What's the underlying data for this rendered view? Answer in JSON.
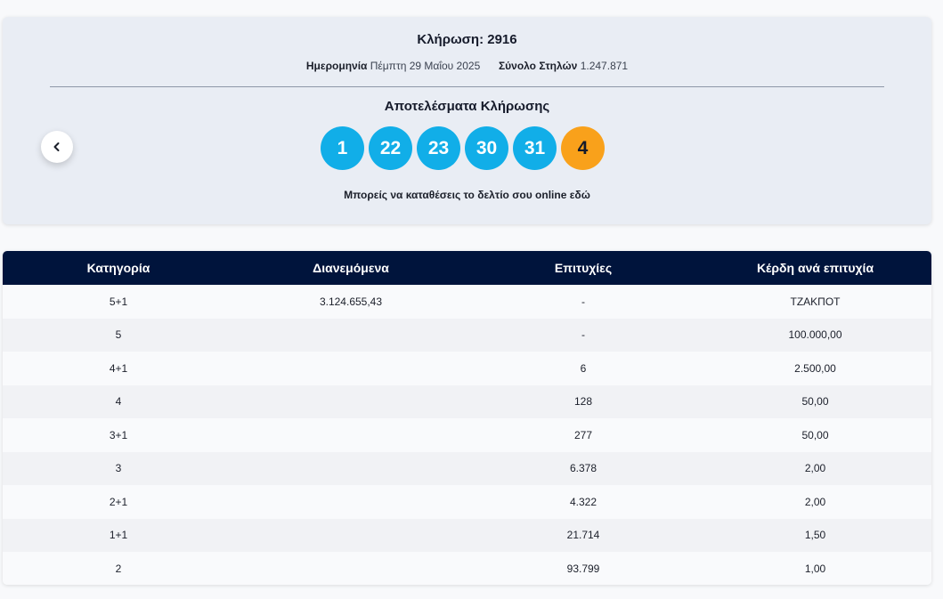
{
  "draw": {
    "title": "Κλήρωση: 2916",
    "date_label": "Ημερομηνία",
    "date_value": "Πέμπτη 29 Μαΐου 2025",
    "columns_label": "Σύνολο Στηλών",
    "columns_value": "1.247.871",
    "results_title": "Αποτελέσματα Κλήρωσης",
    "numbers": [
      "1",
      "22",
      "23",
      "30",
      "31"
    ],
    "joker": "4",
    "online_text": "Μπορείς να καταθέσεις το δελτίο σου online εδώ",
    "prev_icon": "chevron-left-icon"
  },
  "colors": {
    "ball": "#11aee8",
    "joker": "#f9a11b",
    "table_header": "#00143c"
  },
  "table": {
    "headers": [
      "Κατηγορία",
      "Διανεμόμενα",
      "Επιτυχίες",
      "Κέρδη ανά επιτυχία"
    ],
    "rows": [
      [
        "5+1",
        "3.124.655,43",
        "-",
        "ΤΖΑΚΠΟΤ"
      ],
      [
        "5",
        "",
        "-",
        "100.000,00"
      ],
      [
        "4+1",
        "",
        "6",
        "2.500,00"
      ],
      [
        "4",
        "",
        "128",
        "50,00"
      ],
      [
        "3+1",
        "",
        "277",
        "50,00"
      ],
      [
        "3",
        "",
        "6.378",
        "2,00"
      ],
      [
        "2+1",
        "",
        "4.322",
        "2,00"
      ],
      [
        "1+1",
        "",
        "21.714",
        "1,50"
      ],
      [
        "2",
        "",
        "93.799",
        "1,00"
      ]
    ]
  }
}
